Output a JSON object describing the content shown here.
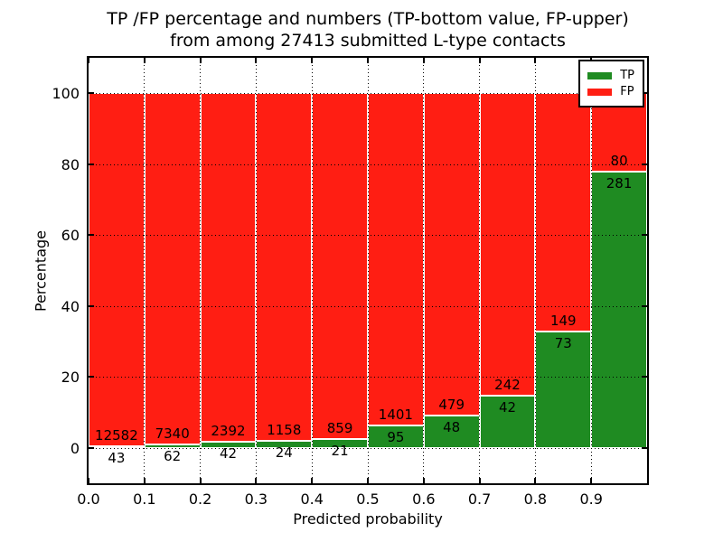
{
  "title": {
    "line1": "TP /FP percentage and numbers (TP-bottom value, FP-upper)",
    "line2": "from among 27413 submitted L-type contacts"
  },
  "axes": {
    "xlabel": "Predicted probability",
    "ylabel": "Percentage",
    "yticks": [
      0,
      20,
      40,
      60,
      80,
      100
    ],
    "xtick_labels": [
      "0.0",
      "0.1",
      "0.2",
      "0.3",
      "0.4",
      "0.5",
      "0.6",
      "0.7",
      "0.8",
      "0.9"
    ],
    "ylim": [
      -10,
      110
    ],
    "xlim": [
      0.0,
      1.0
    ]
  },
  "legend": {
    "position": "upper right",
    "entries": [
      {
        "label": "TP",
        "color": "#1f8b22"
      },
      {
        "label": "FP",
        "color": "#ff1e13"
      }
    ]
  },
  "chart_data": {
    "type": "bar",
    "stacked": true,
    "normalized": "each bin scaled to 100 percent",
    "title": "TP /FP percentage and numbers (TP-bottom value, FP-upper) from among 27413 submitted L-type contacts",
    "xlabel": "Predicted probability",
    "ylabel": "Percentage",
    "xlim": [
      0.0,
      1.0
    ],
    "ylim": [
      -10,
      110
    ],
    "grid": "dotted",
    "legend_position": "upper right",
    "total_contacts": 27413,
    "bin_edges": [
      0.0,
      0.1,
      0.2,
      0.3,
      0.4,
      0.5,
      0.6,
      0.7,
      0.8,
      0.9,
      1.0
    ],
    "categories": [
      "0.0-0.1",
      "0.1-0.2",
      "0.2-0.3",
      "0.3-0.4",
      "0.4-0.5",
      "0.5-0.6",
      "0.6-0.7",
      "0.7-0.8",
      "0.8-0.9",
      "0.9-1.0"
    ],
    "series": [
      {
        "name": "TP",
        "color": "#1f8b22",
        "counts": [
          43,
          62,
          42,
          24,
          21,
          95,
          48,
          42,
          73,
          281
        ]
      },
      {
        "name": "FP",
        "color": "#ff1e13",
        "counts": [
          12582,
          7340,
          2392,
          1158,
          859,
          1401,
          479,
          242,
          149,
          80
        ]
      }
    ],
    "tp_percent": [
      0.34,
      0.84,
      1.73,
      2.03,
      2.39,
      6.35,
      9.11,
      14.79,
      32.88,
      77.84
    ]
  }
}
